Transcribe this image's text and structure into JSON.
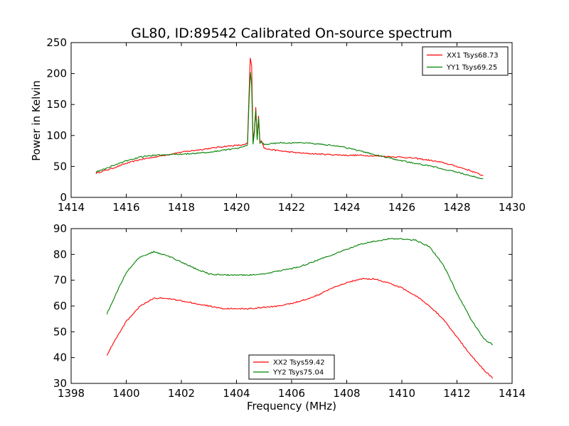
{
  "figure": {
    "title": "GL80, ID:89542 Calibrated On-source spectrum",
    "ylabel": "Power in Kelvin",
    "xlabel": "Frequency (MHz)"
  },
  "chart_data": [
    {
      "type": "line",
      "xlim": [
        1414,
        1430
      ],
      "ylim": [
        0,
        250
      ],
      "xticks": [
        1414,
        1416,
        1418,
        1420,
        1422,
        1424,
        1426,
        1428,
        1430
      ],
      "yticks": [
        0,
        50,
        100,
        150,
        200,
        250
      ],
      "legend_position": "top-right",
      "series": [
        {
          "name": "XX1 Tsys68.73",
          "color": "#ff0000",
          "x": [
            1414.9,
            1415.5,
            1416,
            1416.5,
            1417,
            1417.5,
            1418,
            1418.5,
            1419,
            1419.5,
            1420,
            1420.3,
            1420.4,
            1420.45,
            1420.5,
            1420.55,
            1420.6,
            1420.65,
            1420.7,
            1420.75,
            1420.8,
            1420.85,
            1420.9,
            1420.95,
            1421,
            1421.1,
            1421.3,
            1421.6,
            1422,
            1422.5,
            1423,
            1423.5,
            1424,
            1424.5,
            1425,
            1425.5,
            1426,
            1426.5,
            1427,
            1427.5,
            1428,
            1428.5,
            1428.95
          ],
          "y": [
            39,
            47,
            55,
            61,
            65,
            69,
            73,
            76,
            79,
            82,
            84,
            85,
            88,
            160,
            225,
            212,
            90,
            110,
            146,
            95,
            131,
            90,
            92,
            87,
            80,
            78,
            77,
            75,
            73,
            71,
            70,
            69,
            68,
            68,
            67,
            66,
            65,
            63,
            60,
            56,
            50,
            43,
            35
          ]
        },
        {
          "name": "YY1 Tsys69.25",
          "color": "#008000",
          "x": [
            1414.9,
            1415.5,
            1416,
            1416.5,
            1417,
            1417.5,
            1418,
            1418.5,
            1419,
            1419.5,
            1420,
            1420.3,
            1420.4,
            1420.45,
            1420.5,
            1420.55,
            1420.6,
            1420.65,
            1420.7,
            1420.75,
            1420.8,
            1420.85,
            1420.9,
            1420.95,
            1421,
            1421.1,
            1421.3,
            1421.6,
            1422,
            1422.5,
            1423,
            1423.5,
            1424,
            1424.5,
            1425,
            1425.5,
            1426,
            1426.5,
            1427,
            1427.5,
            1428,
            1428.5,
            1428.95
          ],
          "y": [
            41,
            51,
            59,
            65,
            68,
            69,
            70,
            71,
            73,
            76,
            79,
            82,
            85,
            150,
            202,
            180,
            86,
            105,
            140,
            92,
            128,
            88,
            89,
            88,
            85,
            86,
            87,
            88,
            88,
            88,
            86,
            84,
            80,
            75,
            69,
            64,
            59,
            55,
            51,
            46,
            41,
            35,
            30
          ]
        }
      ]
    },
    {
      "type": "line",
      "xlim": [
        1398,
        1414
      ],
      "ylim": [
        30,
        90
      ],
      "xticks": [
        1398,
        1400,
        1402,
        1404,
        1406,
        1408,
        1410,
        1412,
        1414
      ],
      "yticks": [
        30,
        40,
        50,
        60,
        70,
        80,
        90
      ],
      "legend_position": "bottom-center",
      "series": [
        {
          "name": "XX2 Tsys59.42",
          "color": "#ff0000",
          "x": [
            1399.3,
            1399.6,
            1400,
            1400.5,
            1401,
            1401.5,
            1402,
            1402.5,
            1403,
            1403.5,
            1404,
            1404.5,
            1405,
            1405.5,
            1406,
            1406.5,
            1407,
            1407.5,
            1408,
            1408.5,
            1409,
            1409.5,
            1410,
            1410.5,
            1411,
            1411.5,
            1412,
            1412.5,
            1413,
            1413.3
          ],
          "y": [
            41,
            47,
            54,
            60,
            63,
            63,
            62,
            61,
            60,
            59,
            59,
            59,
            59.5,
            60,
            61,
            62.5,
            64.5,
            67,
            69,
            70.5,
            70.5,
            69,
            67,
            64,
            60,
            55,
            48,
            41,
            35,
            32
          ]
        },
        {
          "name": "YY2 Tsys75.04",
          "color": "#008000",
          "x": [
            1399.3,
            1399.6,
            1400,
            1400.5,
            1401,
            1401.5,
            1402,
            1402.5,
            1403,
            1403.5,
            1404,
            1404.5,
            1405,
            1405.5,
            1406,
            1406.5,
            1407,
            1407.5,
            1408,
            1408.5,
            1409,
            1409.5,
            1410,
            1410.5,
            1411,
            1411.5,
            1412,
            1412.5,
            1413,
            1413.3
          ],
          "y": [
            57,
            64,
            73,
            79,
            81,
            79.5,
            77,
            74.5,
            72.5,
            72,
            72,
            72,
            72.5,
            73.5,
            74.5,
            76,
            78,
            80,
            82,
            84,
            85,
            86,
            86,
            85.5,
            83,
            76,
            65,
            55,
            47,
            45
          ]
        }
      ]
    }
  ]
}
